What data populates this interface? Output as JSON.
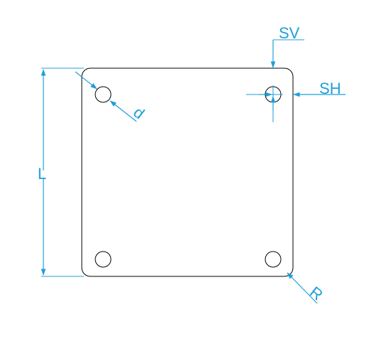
{
  "diagram": {
    "labels": {
      "sv": "SV",
      "sh": "SH",
      "length": "L",
      "diameter": "d",
      "radius": "R"
    },
    "colors": {
      "outline": "#000000",
      "dimension": "#1f9fd9"
    }
  }
}
